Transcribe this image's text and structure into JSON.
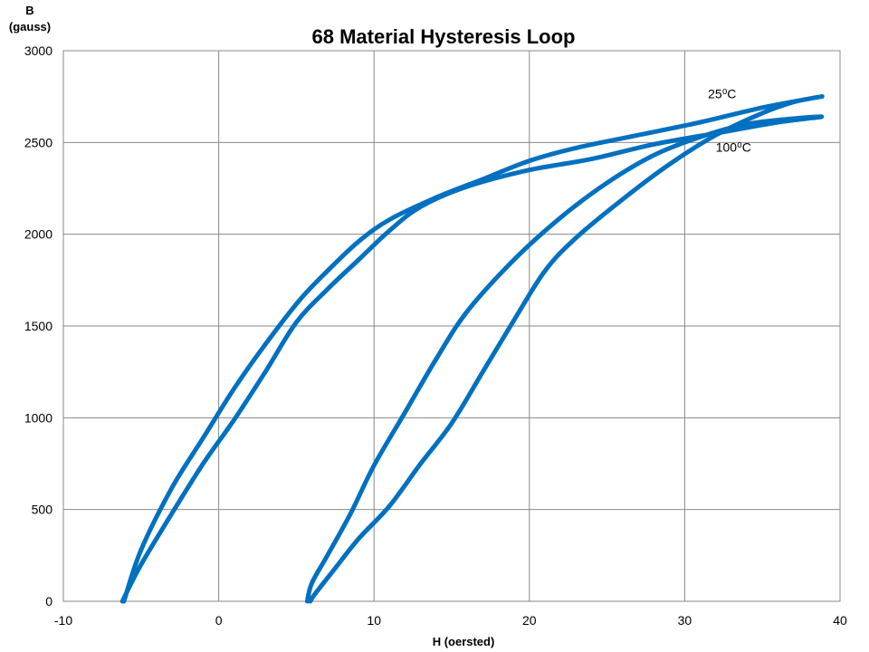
{
  "chart_data": {
    "type": "line",
    "title": "68 Material Hysteresis Loop",
    "ylabel_line1": "B",
    "ylabel_line2": "(gauss)",
    "xlabel": "H (oersted)",
    "xlim": [
      -10,
      40
    ],
    "ylim": [
      0,
      3000
    ],
    "xticks": [
      -10,
      0,
      10,
      20,
      30,
      40
    ],
    "yticks": [
      0,
      500,
      1000,
      1500,
      2000,
      2500,
      3000
    ],
    "grid": true,
    "line_color": "#0070c0",
    "annotations": [
      {
        "text": "25⁰C",
        "x": 31.5,
        "y": 2740
      },
      {
        "text": "100⁰C",
        "x": 32,
        "y": 2450
      }
    ],
    "series": [
      {
        "label": "25⁰C",
        "x": [
          -6.1,
          -5,
          -3,
          -1,
          1,
          3,
          5.2,
          7,
          9,
          11,
          14,
          17,
          20,
          23,
          27,
          31,
          35,
          38.8,
          37,
          35,
          32,
          29,
          26,
          23,
          21,
          19,
          17,
          15,
          13,
          11,
          9,
          7.5,
          6.2,
          5.9
        ],
        "y": [
          0,
          280,
          620,
          890,
          1160,
          1400,
          1640,
          1800,
          1960,
          2080,
          2200,
          2300,
          2400,
          2470,
          2540,
          2610,
          2690,
          2750,
          2720,
          2660,
          2540,
          2380,
          2190,
          1980,
          1800,
          1530,
          1250,
          970,
          750,
          520,
          340,
          180,
          40,
          0
        ]
      },
      {
        "label": "100⁰C",
        "x": [
          -6.2,
          -5,
          -3,
          -1,
          1,
          3,
          5,
          7,
          9,
          11,
          13,
          16,
          20,
          24,
          28,
          32,
          36,
          38.8,
          37,
          34,
          31,
          28,
          25,
          22,
          19,
          16,
          14,
          12,
          10,
          8.5,
          7,
          6,
          5.7
        ],
        "y": [
          0,
          200,
          480,
          750,
          990,
          1250,
          1520,
          1700,
          1860,
          2020,
          2150,
          2260,
          2350,
          2410,
          2490,
          2550,
          2610,
          2640,
          2630,
          2600,
          2530,
          2430,
          2280,
          2090,
          1860,
          1580,
          1320,
          1030,
          740,
          480,
          250,
          100,
          0
        ]
      }
    ]
  }
}
